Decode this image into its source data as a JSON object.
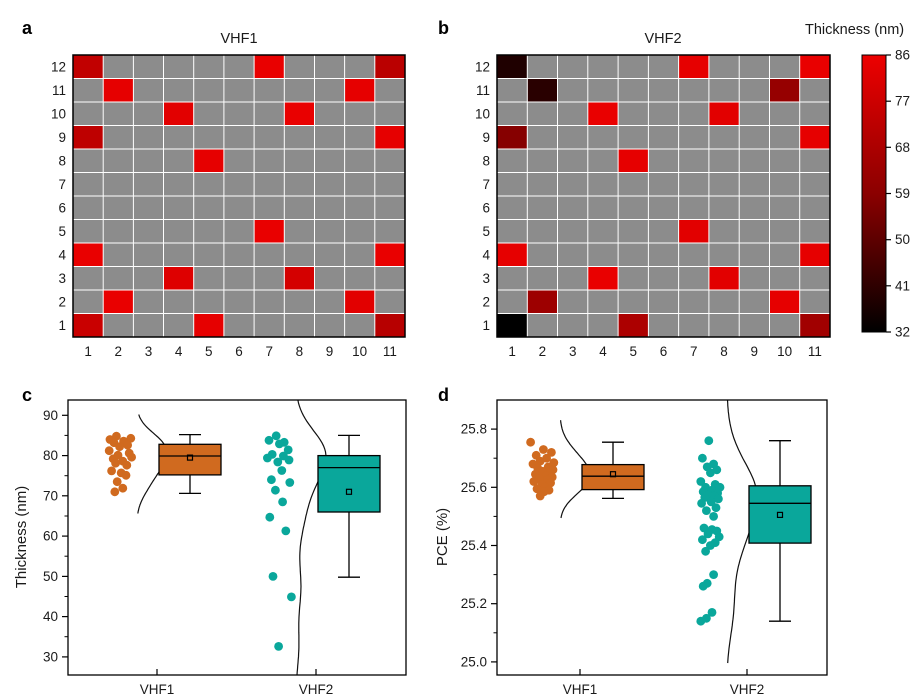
{
  "panels": {
    "a": {
      "label": "a"
    },
    "b": {
      "label": "b"
    },
    "c": {
      "label": "c"
    },
    "d": {
      "label": "d"
    }
  },
  "colorbar": {
    "title": "Thickness (nm)",
    "min": 32,
    "max": 86,
    "ticks": [
      86,
      77,
      68,
      59,
      50,
      41,
      32
    ],
    "max_color": "#ED0000",
    "mid_color": "#8B0000",
    "min_color": "#000000"
  },
  "chart_data": [
    {
      "id": "a",
      "type": "heatmap",
      "title": "VHF1",
      "x_ticks": [
        1,
        2,
        3,
        4,
        5,
        6,
        7,
        8,
        9,
        10,
        11
      ],
      "y_ticks": [
        1,
        2,
        3,
        4,
        5,
        6,
        7,
        8,
        9,
        10,
        11,
        12
      ],
      "value_label": "Thickness (nm)",
      "empty_color": "#8C8C8C",
      "cells": [
        [
          12,
          1,
          74
        ],
        [
          12,
          7,
          85
        ],
        [
          12,
          11,
          72
        ],
        [
          11,
          2,
          84
        ],
        [
          11,
          10,
          84
        ],
        [
          10,
          4,
          83
        ],
        [
          10,
          8,
          85
        ],
        [
          9,
          1,
          73
        ],
        [
          9,
          11,
          84
        ],
        [
          8,
          5,
          84
        ],
        [
          5,
          7,
          85
        ],
        [
          4,
          1,
          85
        ],
        [
          4,
          11,
          85
        ],
        [
          3,
          4,
          82
        ],
        [
          3,
          8,
          79
        ],
        [
          2,
          2,
          85
        ],
        [
          2,
          10,
          83
        ],
        [
          1,
          1,
          76
        ],
        [
          1,
          5,
          84
        ],
        [
          1,
          11,
          71
        ]
      ]
    },
    {
      "id": "b",
      "type": "heatmap",
      "title": "VHF2",
      "x_ticks": [
        1,
        2,
        3,
        4,
        5,
        6,
        7,
        8,
        9,
        10,
        11
      ],
      "y_ticks": [
        1,
        2,
        3,
        4,
        5,
        6,
        7,
        8,
        9,
        10,
        11,
        12
      ],
      "value_label": "Thickness (nm)",
      "empty_color": "#8C8C8C",
      "cells": [
        [
          12,
          1,
          38
        ],
        [
          12,
          7,
          84
        ],
        [
          12,
          11,
          85
        ],
        [
          11,
          2,
          40
        ],
        [
          11,
          10,
          62
        ],
        [
          10,
          4,
          85
        ],
        [
          10,
          8,
          83
        ],
        [
          9,
          1,
          58
        ],
        [
          9,
          11,
          84
        ],
        [
          8,
          5,
          84
        ],
        [
          5,
          7,
          83
        ],
        [
          4,
          1,
          84
        ],
        [
          4,
          11,
          84
        ],
        [
          3,
          4,
          85
        ],
        [
          3,
          8,
          83
        ],
        [
          2,
          2,
          64
        ],
        [
          2,
          10,
          84
        ],
        [
          1,
          1,
          32
        ],
        [
          1,
          5,
          68
        ],
        [
          1,
          11,
          65
        ]
      ]
    },
    {
      "id": "c",
      "type": "box-scatter",
      "ylabel": "Thickness (nm)",
      "ylim": [
        25.5,
        93.8
      ],
      "yticks": [
        {
          "v": 30,
          "label": "30"
        },
        {
          "v": 40,
          "label": "40"
        },
        {
          "v": 50,
          "label": "50"
        },
        {
          "v": 60,
          "label": "60"
        },
        {
          "v": 70,
          "label": "70"
        },
        {
          "v": 80,
          "label": "80"
        },
        {
          "v": 90,
          "label": "90"
        }
      ],
      "yminor": [
        35,
        45,
        55,
        65,
        75,
        85
      ],
      "categories": [
        "VHF1",
        "VHF2"
      ],
      "series": [
        {
          "name": "VHF1",
          "color": "#D06A1F",
          "kde_bw": 3,
          "points": [
            [
              84.8,
              -0.35
            ],
            [
              84.3,
              0.55
            ],
            [
              84.0,
              -0.75
            ],
            [
              83.6,
              0.1
            ],
            [
              83.2,
              -0.5
            ],
            [
              82.6,
              0.35
            ],
            [
              82.2,
              -0.15
            ],
            [
              81.2,
              -0.8
            ],
            [
              80.6,
              0.45
            ],
            [
              80.1,
              -0.25
            ],
            [
              79.6,
              0.6
            ],
            [
              79.2,
              -0.55
            ],
            [
              78.6,
              0.05
            ],
            [
              78.1,
              -0.4
            ],
            [
              77.6,
              0.3
            ],
            [
              76.2,
              -0.65
            ],
            [
              75.7,
              -0.05
            ],
            [
              75.1,
              0.25
            ],
            [
              73.5,
              -0.3
            ],
            [
              71.9,
              0.05
            ],
            [
              71.0,
              -0.45
            ]
          ],
          "box": {
            "lo": 70.6,
            "q1": 75.2,
            "median": 79.9,
            "q3": 82.8,
            "hi": 85.2,
            "mean": 79.5
          }
        },
        {
          "name": "VHF2",
          "color": "#0AA79B",
          "kde_bw": 5,
          "points": [
            [
              84.9,
              -0.3
            ],
            [
              83.8,
              -0.75
            ],
            [
              83.3,
              0.2
            ],
            [
              82.9,
              -0.1
            ],
            [
              81.4,
              0.45
            ],
            [
              80.3,
              -0.55
            ],
            [
              79.9,
              0.15
            ],
            [
              79.4,
              -0.85
            ],
            [
              78.9,
              0.5
            ],
            [
              78.4,
              -0.2
            ],
            [
              76.3,
              0.05
            ],
            [
              74.0,
              -0.6
            ],
            [
              73.3,
              0.55
            ],
            [
              71.4,
              -0.35
            ],
            [
              68.5,
              0.1
            ],
            [
              64.7,
              -0.7
            ],
            [
              61.3,
              0.3
            ],
            [
              50.0,
              -0.5
            ],
            [
              44.9,
              0.65
            ],
            [
              32.6,
              -0.15
            ]
          ],
          "box": {
            "lo": 49.8,
            "q1": 66.0,
            "median": 77.0,
            "q3": 80.0,
            "hi": 85.0,
            "mean": 71.0
          }
        }
      ]
    },
    {
      "id": "d",
      "type": "box-scatter",
      "ylabel": "PCE (%)",
      "ylim": [
        24.955,
        25.9
      ],
      "yticks": [
        {
          "v": 25.0,
          "label": "25.0"
        },
        {
          "v": 25.2,
          "label": "25.2"
        },
        {
          "v": 25.4,
          "label": "25.4"
        },
        {
          "v": 25.6,
          "label": "25.6"
        },
        {
          "v": 25.8,
          "label": "25.8"
        }
      ],
      "yminor": [
        25.1,
        25.3,
        25.5,
        25.7
      ],
      "categories": [
        "VHF1",
        "VHF2"
      ],
      "series": [
        {
          "name": "VHF1",
          "color": "#D06A1F",
          "kde_bw": 0.042,
          "points": [
            [
              25.755,
              -0.9
            ],
            [
              25.73,
              -0.1
            ],
            [
              25.72,
              0.4
            ],
            [
              25.71,
              -0.55
            ],
            [
              25.7,
              0.1
            ],
            [
              25.69,
              -0.3
            ],
            [
              25.685,
              0.55
            ],
            [
              25.68,
              -0.75
            ],
            [
              25.67,
              0.2
            ],
            [
              25.665,
              -0.45
            ],
            [
              25.66,
              0.5
            ],
            [
              25.655,
              -0.15
            ],
            [
              25.65,
              0.3
            ],
            [
              25.645,
              -0.6
            ],
            [
              25.64,
              0.05
            ],
            [
              25.635,
              0.45
            ],
            [
              25.63,
              -0.35
            ],
            [
              25.625,
              0.15
            ],
            [
              25.62,
              -0.7
            ],
            [
              25.615,
              0.35
            ],
            [
              25.61,
              -0.2
            ],
            [
              25.6,
              0.0
            ],
            [
              25.595,
              -0.5
            ],
            [
              25.59,
              0.25
            ],
            [
              25.585,
              -0.05
            ],
            [
              25.57,
              -0.3
            ]
          ],
          "box": {
            "lo": 25.562,
            "q1": 25.592,
            "median": 25.638,
            "q3": 25.678,
            "hi": 25.755,
            "mean": 25.645
          }
        },
        {
          "name": "VHF2",
          "color": "#0AA79B",
          "kde_bw": 0.08,
          "points": [
            [
              25.76,
              -0.2
            ],
            [
              25.7,
              -0.6
            ],
            [
              25.68,
              0.1
            ],
            [
              25.67,
              -0.3
            ],
            [
              25.66,
              0.3
            ],
            [
              25.65,
              -0.1
            ],
            [
              25.62,
              -0.7
            ],
            [
              25.61,
              0.2
            ],
            [
              25.6,
              -0.4
            ],
            [
              25.6,
              0.5
            ],
            [
              25.59,
              0.0
            ],
            [
              25.585,
              -0.55
            ],
            [
              25.58,
              0.35
            ],
            [
              25.575,
              -0.2
            ],
            [
              25.57,
              0.15
            ],
            [
              25.565,
              -0.45
            ],
            [
              25.56,
              0.4
            ],
            [
              25.55,
              -0.05
            ],
            [
              25.545,
              -0.65
            ],
            [
              25.53,
              0.25
            ],
            [
              25.52,
              -0.35
            ],
            [
              25.5,
              0.1
            ],
            [
              25.46,
              -0.5
            ],
            [
              25.455,
              0.0
            ],
            [
              25.45,
              0.3
            ],
            [
              25.44,
              -0.25
            ],
            [
              25.43,
              0.45
            ],
            [
              25.42,
              -0.6
            ],
            [
              25.41,
              0.2
            ],
            [
              25.4,
              -0.1
            ],
            [
              25.38,
              -0.4
            ],
            [
              25.3,
              0.1
            ],
            [
              25.27,
              -0.3
            ],
            [
              25.26,
              -0.55
            ],
            [
              25.17,
              0.0
            ],
            [
              25.15,
              -0.35
            ],
            [
              25.14,
              -0.7
            ]
          ],
          "box": {
            "lo": 25.14,
            "q1": 25.408,
            "median": 25.545,
            "q3": 25.605,
            "hi": 25.76,
            "mean": 25.505
          }
        }
      ]
    }
  ]
}
